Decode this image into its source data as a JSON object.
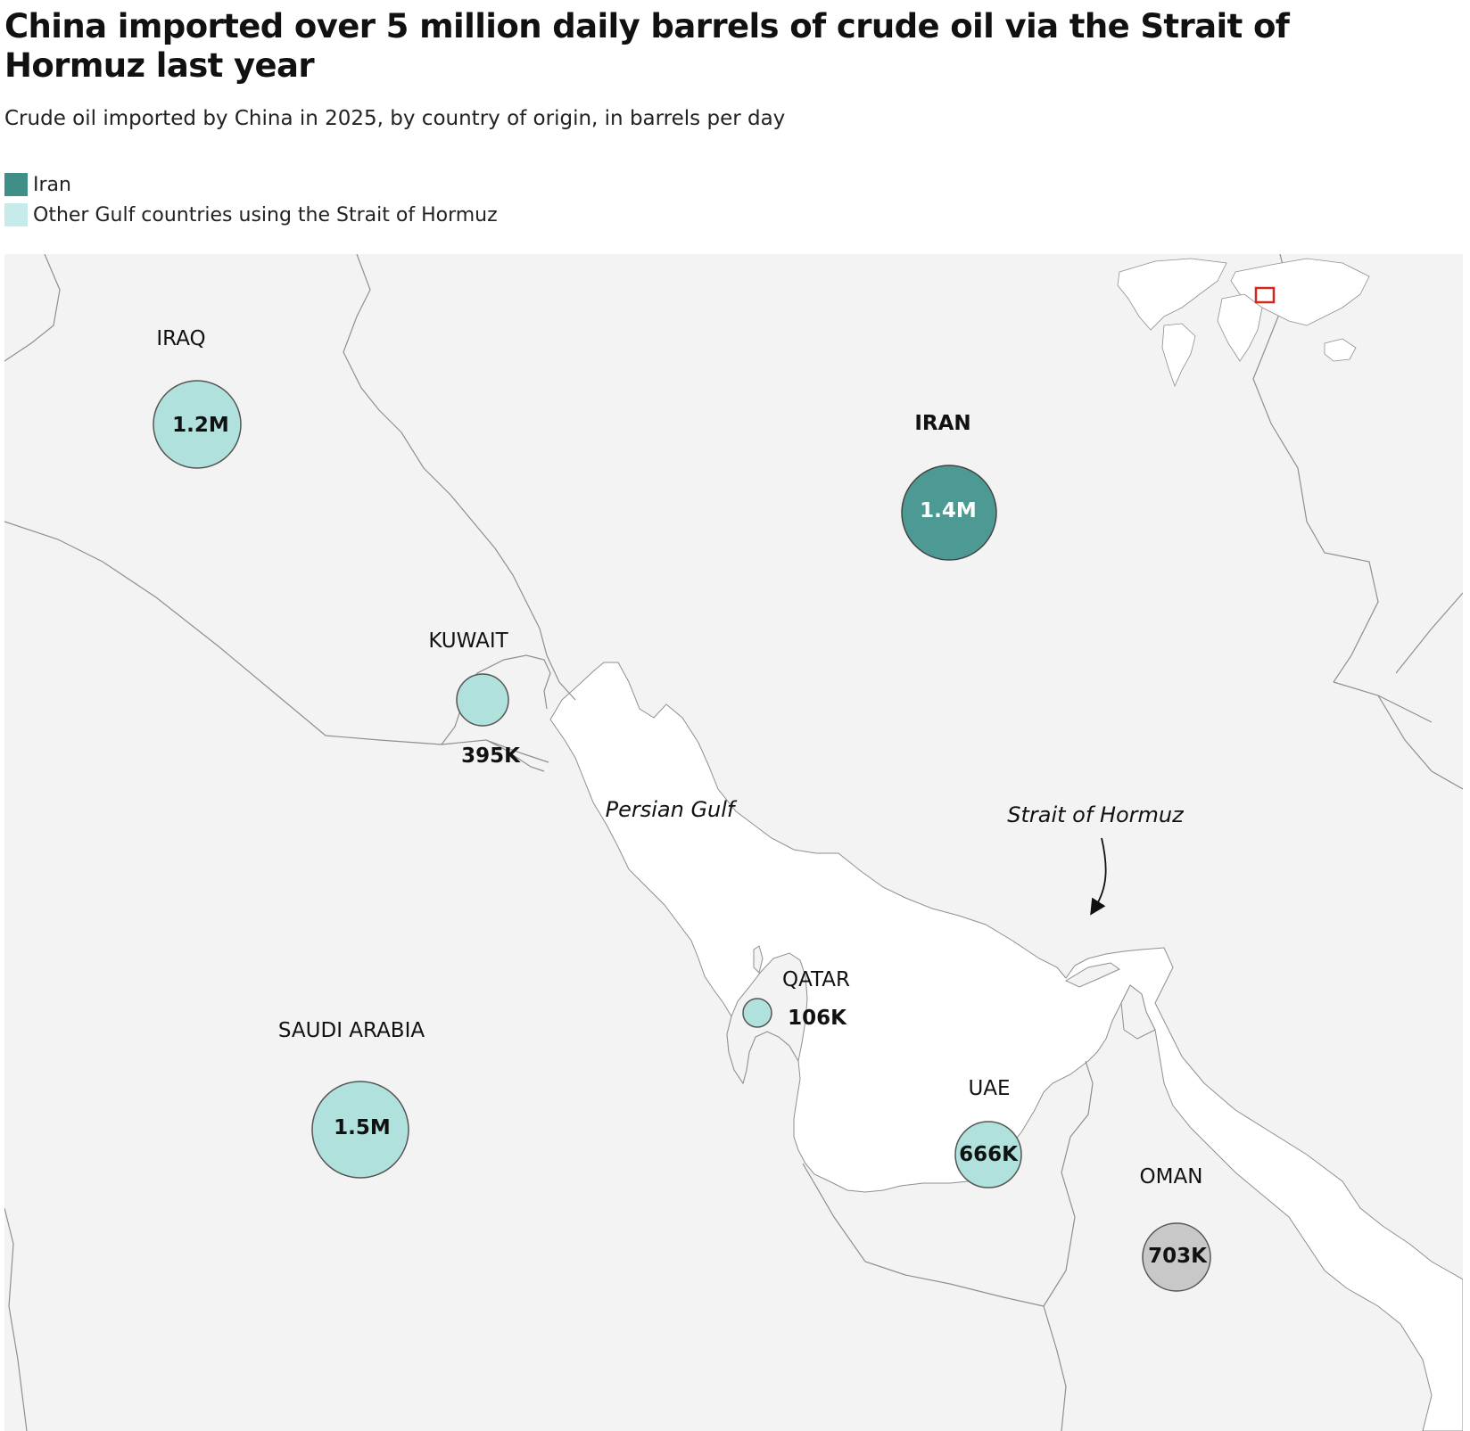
{
  "title": "China imported over 5 million daily barrels of crude oil via the Strait of Hormuz last year",
  "subtitle": "Crude oil imported by China in 2025, by country of origin, in barrels per day",
  "legend": [
    {
      "label": "Iran",
      "color": "#3f8e87"
    },
    {
      "label": "Other Gulf countries using the Strait of Hormuz",
      "color": "#c6ebea"
    }
  ],
  "colors": {
    "land": "#f3f3f3",
    "water": "#ffffff",
    "border": "#8f8f8f",
    "iran_bubble": "#4c9a93",
    "gulf_bubble": "#b0e1dd",
    "other_bubble": "#c8c8c8",
    "inset_marker": "#d0281f"
  },
  "countries": {
    "iraq": {
      "name": "IRAQ",
      "value": "1.2M"
    },
    "iran": {
      "name": "IRAN",
      "value": "1.4M"
    },
    "kuwait": {
      "name": "KUWAIT",
      "value": "395K"
    },
    "qatar": {
      "name": "QATAR",
      "value": "106K"
    },
    "saudi": {
      "name": "SAUDI ARABIA",
      "value": "1.5M"
    },
    "uae": {
      "name": "UAE",
      "value": "666K"
    },
    "oman": {
      "name": "OMAN",
      "value": "703K"
    }
  },
  "water_labels": {
    "persian_gulf": "Persian Gulf",
    "hormuz": "Strait of Hormuz"
  }
}
